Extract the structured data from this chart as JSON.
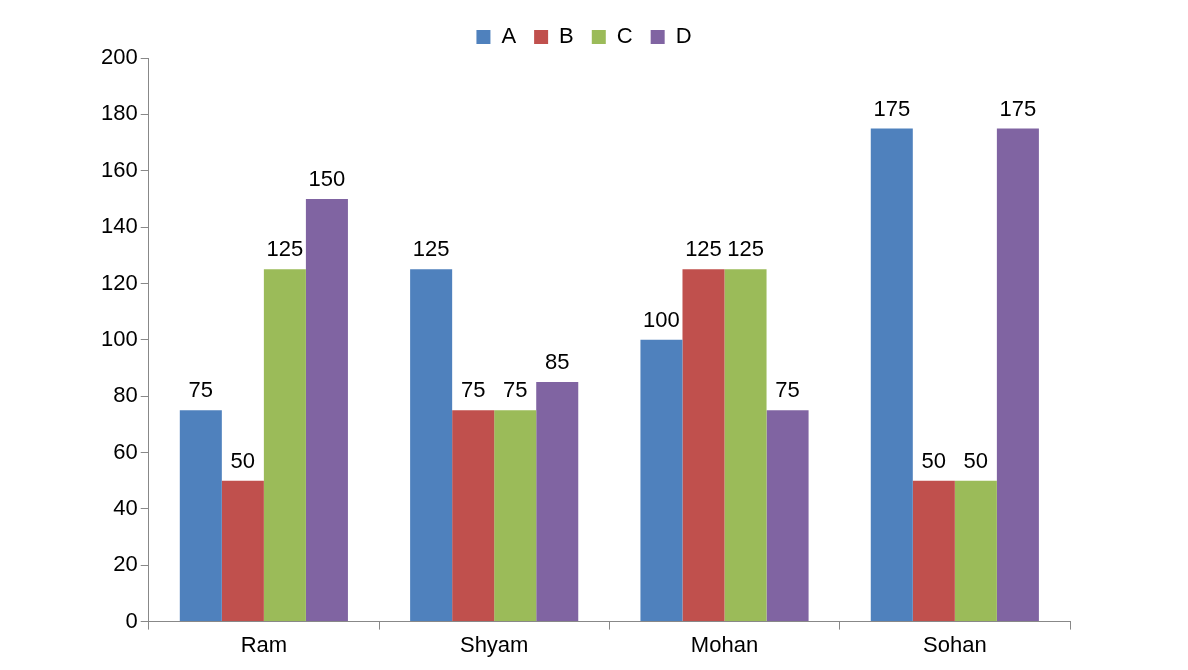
{
  "chart_data": {
    "type": "bar",
    "categories": [
      "Ram",
      "Shyam",
      "Mohan",
      "Sohan"
    ],
    "series": [
      {
        "name": "A",
        "color": "#4f81bd",
        "values": [
          75,
          125,
          100,
          175
        ]
      },
      {
        "name": "B",
        "color": "#c0504d",
        "values": [
          50,
          75,
          125,
          50
        ]
      },
      {
        "name": "C",
        "color": "#9bbb59",
        "values": [
          125,
          75,
          125,
          50
        ]
      },
      {
        "name": "D",
        "color": "#8064a2",
        "values": [
          150,
          85,
          75,
          175
        ]
      }
    ],
    "ylim": [
      0,
      200
    ],
    "yticks": [
      0,
      20,
      40,
      60,
      80,
      100,
      120,
      140,
      160,
      180,
      200
    ],
    "grid": false,
    "legend": "top",
    "data_labels": true
  }
}
